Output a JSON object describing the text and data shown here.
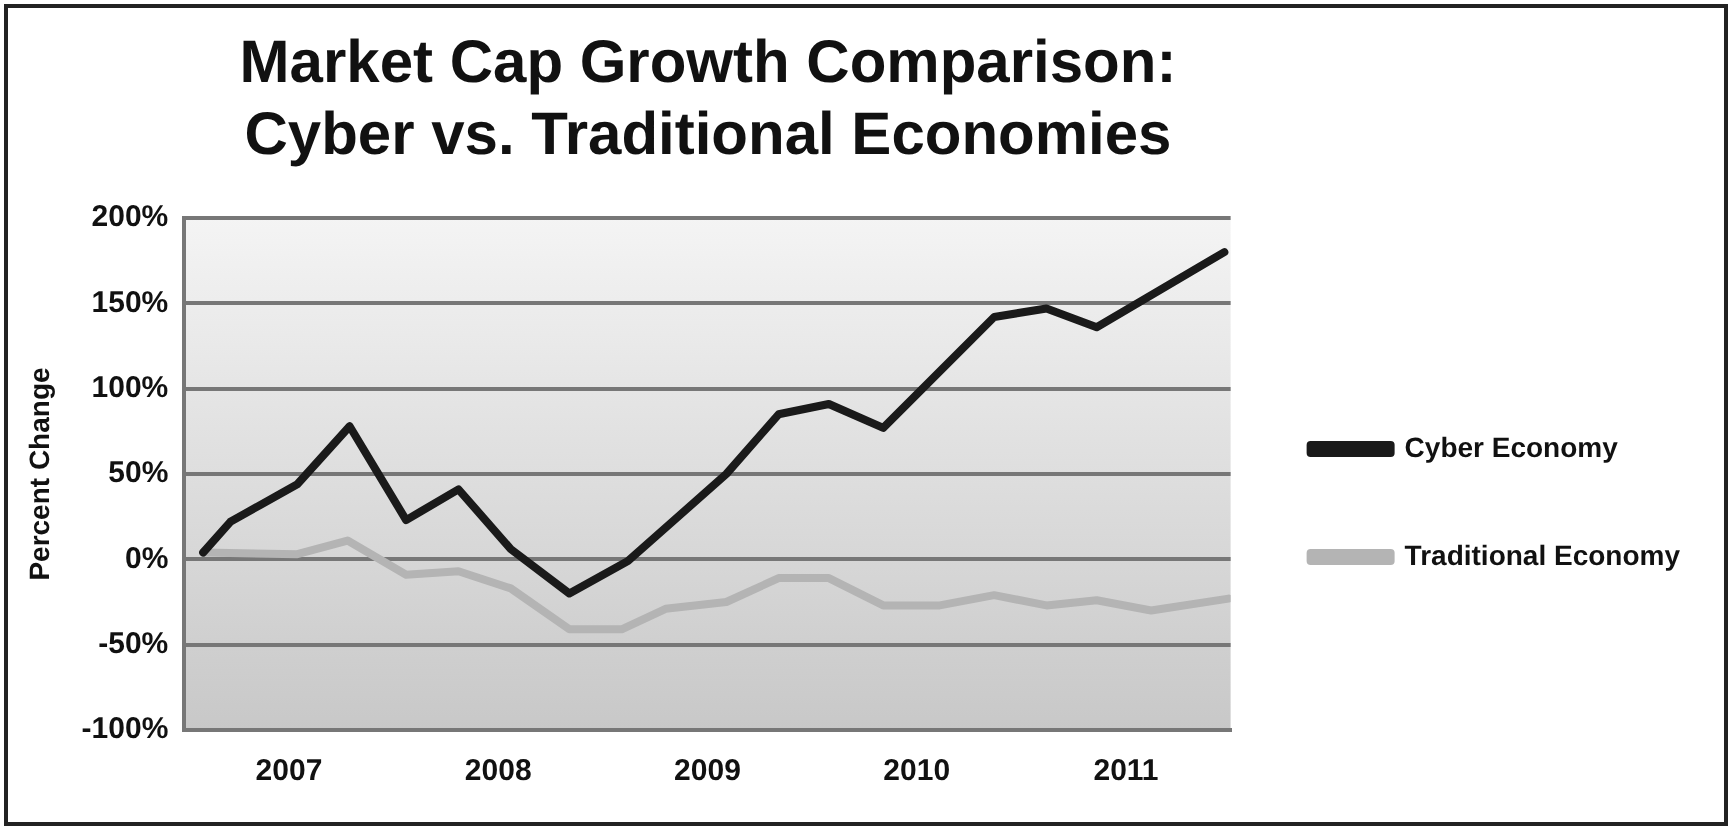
{
  "chart_data": {
    "type": "line",
    "title": "Market Cap Growth Comparison:\nCyber vs. Traditional Economies",
    "ylabel": "Percent Change",
    "xlim": [
      2007,
      2012
    ],
    "xticks": [
      {
        "value": 2007.5,
        "label": "2007"
      },
      {
        "value": 2008.5,
        "label": "2008"
      },
      {
        "value": 2009.5,
        "label": "2009"
      },
      {
        "value": 2010.5,
        "label": "2010"
      },
      {
        "value": 2011.5,
        "label": "2011"
      }
    ],
    "ylim": [
      -100,
      200
    ],
    "yticks": [
      {
        "value": -100,
        "label": "-100%"
      },
      {
        "value": -50,
        "label": "-50%"
      },
      {
        "value": 0,
        "label": "0%"
      },
      {
        "value": 50,
        "label": "50%"
      },
      {
        "value": 100,
        "label": "100%"
      },
      {
        "value": 150,
        "label": "150%"
      },
      {
        "value": 200,
        "label": "200%"
      }
    ],
    "grid": "y",
    "legend": "right",
    "marker": "none",
    "line_style": "solid",
    "series": [
      {
        "name": "Cyber Economy",
        "color": "#1a1a1a",
        "x": [
          2007.09,
          2007.22,
          2007.54,
          2007.79,
          2008.06,
          2008.31,
          2008.56,
          2008.84,
          2009.12,
          2009.59,
          2009.84,
          2010.08,
          2010.34,
          2010.87,
          2011.12,
          2011.36,
          2011.97
        ],
        "values": [
          4,
          22,
          44,
          78,
          23,
          41,
          6,
          -20,
          -1,
          50,
          85,
          91,
          77,
          142,
          147,
          136,
          180
        ]
      },
      {
        "name": "Traditional Economy",
        "color": "#b4b4b4",
        "x": [
          2007.09,
          2007.54,
          2007.78,
          2008.06,
          2008.31,
          2008.56,
          2008.84,
          2009.09,
          2009.3,
          2009.59,
          2009.84,
          2010.08,
          2010.34,
          2010.61,
          2010.87,
          2011.12,
          2011.36,
          2011.62,
          2011.99
        ],
        "values": [
          4,
          3,
          11,
          -9,
          -7,
          -17,
          -41,
          -41,
          -29,
          -25,
          -11,
          -11,
          -27,
          -27,
          -21,
          -27,
          -24,
          -30,
          -23
        ]
      }
    ]
  }
}
